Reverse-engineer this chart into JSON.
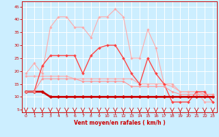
{
  "x": [
    0,
    1,
    2,
    3,
    4,
    5,
    6,
    7,
    8,
    9,
    10,
    11,
    12,
    13,
    14,
    15,
    16,
    17,
    18,
    19,
    20,
    21,
    22,
    23
  ],
  "series": [
    {
      "name": "rafales_max",
      "color": "#ffaaaa",
      "linewidth": 0.8,
      "marker": "D",
      "markersize": 1.8,
      "values": [
        19,
        23,
        19,
        37,
        41,
        41,
        37,
        37,
        33,
        41,
        41,
        44,
        41,
        25,
        25,
        36,
        29,
        15,
        14,
        12,
        12,
        12,
        8,
        8
      ]
    },
    {
      "name": "rafales_min",
      "color": "#ffaaaa",
      "linewidth": 0.8,
      "marker": "D",
      "markersize": 1.8,
      "values": [
        18,
        18,
        18,
        18,
        18,
        18,
        17,
        17,
        17,
        17,
        17,
        17,
        17,
        17,
        15,
        15,
        15,
        15,
        15,
        12,
        12,
        12,
        11,
        11
      ]
    },
    {
      "name": "vent_max",
      "color": "#ff4444",
      "linewidth": 1.0,
      "marker": "D",
      "markersize": 2.0,
      "values": [
        12,
        12,
        22,
        26,
        26,
        26,
        26,
        19,
        26,
        29,
        30,
        30,
        25,
        19,
        15,
        25,
        19,
        15,
        8,
        8,
        8,
        12,
        12,
        8
      ]
    },
    {
      "name": "vent_moyen",
      "color": "#cc0000",
      "linewidth": 2.0,
      "marker": "D",
      "markersize": 2.5,
      "values": [
        12,
        12,
        12,
        10,
        10,
        10,
        10,
        10,
        10,
        10,
        10,
        10,
        10,
        10,
        10,
        10,
        10,
        10,
        10,
        10,
        10,
        10,
        10,
        10
      ]
    },
    {
      "name": "vent_min",
      "color": "#ff9999",
      "linewidth": 0.8,
      "marker": "D",
      "markersize": 1.8,
      "values": [
        12,
        12,
        17,
        17,
        17,
        17,
        17,
        16,
        16,
        16,
        16,
        16,
        16,
        14,
        14,
        14,
        14,
        14,
        12,
        11,
        11,
        11,
        11,
        11
      ]
    }
  ],
  "xlim": [
    -0.5,
    23.5
  ],
  "ylim": [
    4,
    47
  ],
  "yticks": [
    5,
    10,
    15,
    20,
    25,
    30,
    35,
    40,
    45
  ],
  "xticks": [
    0,
    1,
    2,
    3,
    4,
    5,
    6,
    7,
    8,
    9,
    10,
    11,
    12,
    13,
    14,
    15,
    16,
    17,
    18,
    19,
    20,
    21,
    22,
    23
  ],
  "xlabel": "Vent moyen/en rafales ( km/h )",
  "background_color": "#cceeff",
  "grid_color": "#ffffff",
  "tick_color": "#cc0000",
  "label_color": "#cc0000"
}
